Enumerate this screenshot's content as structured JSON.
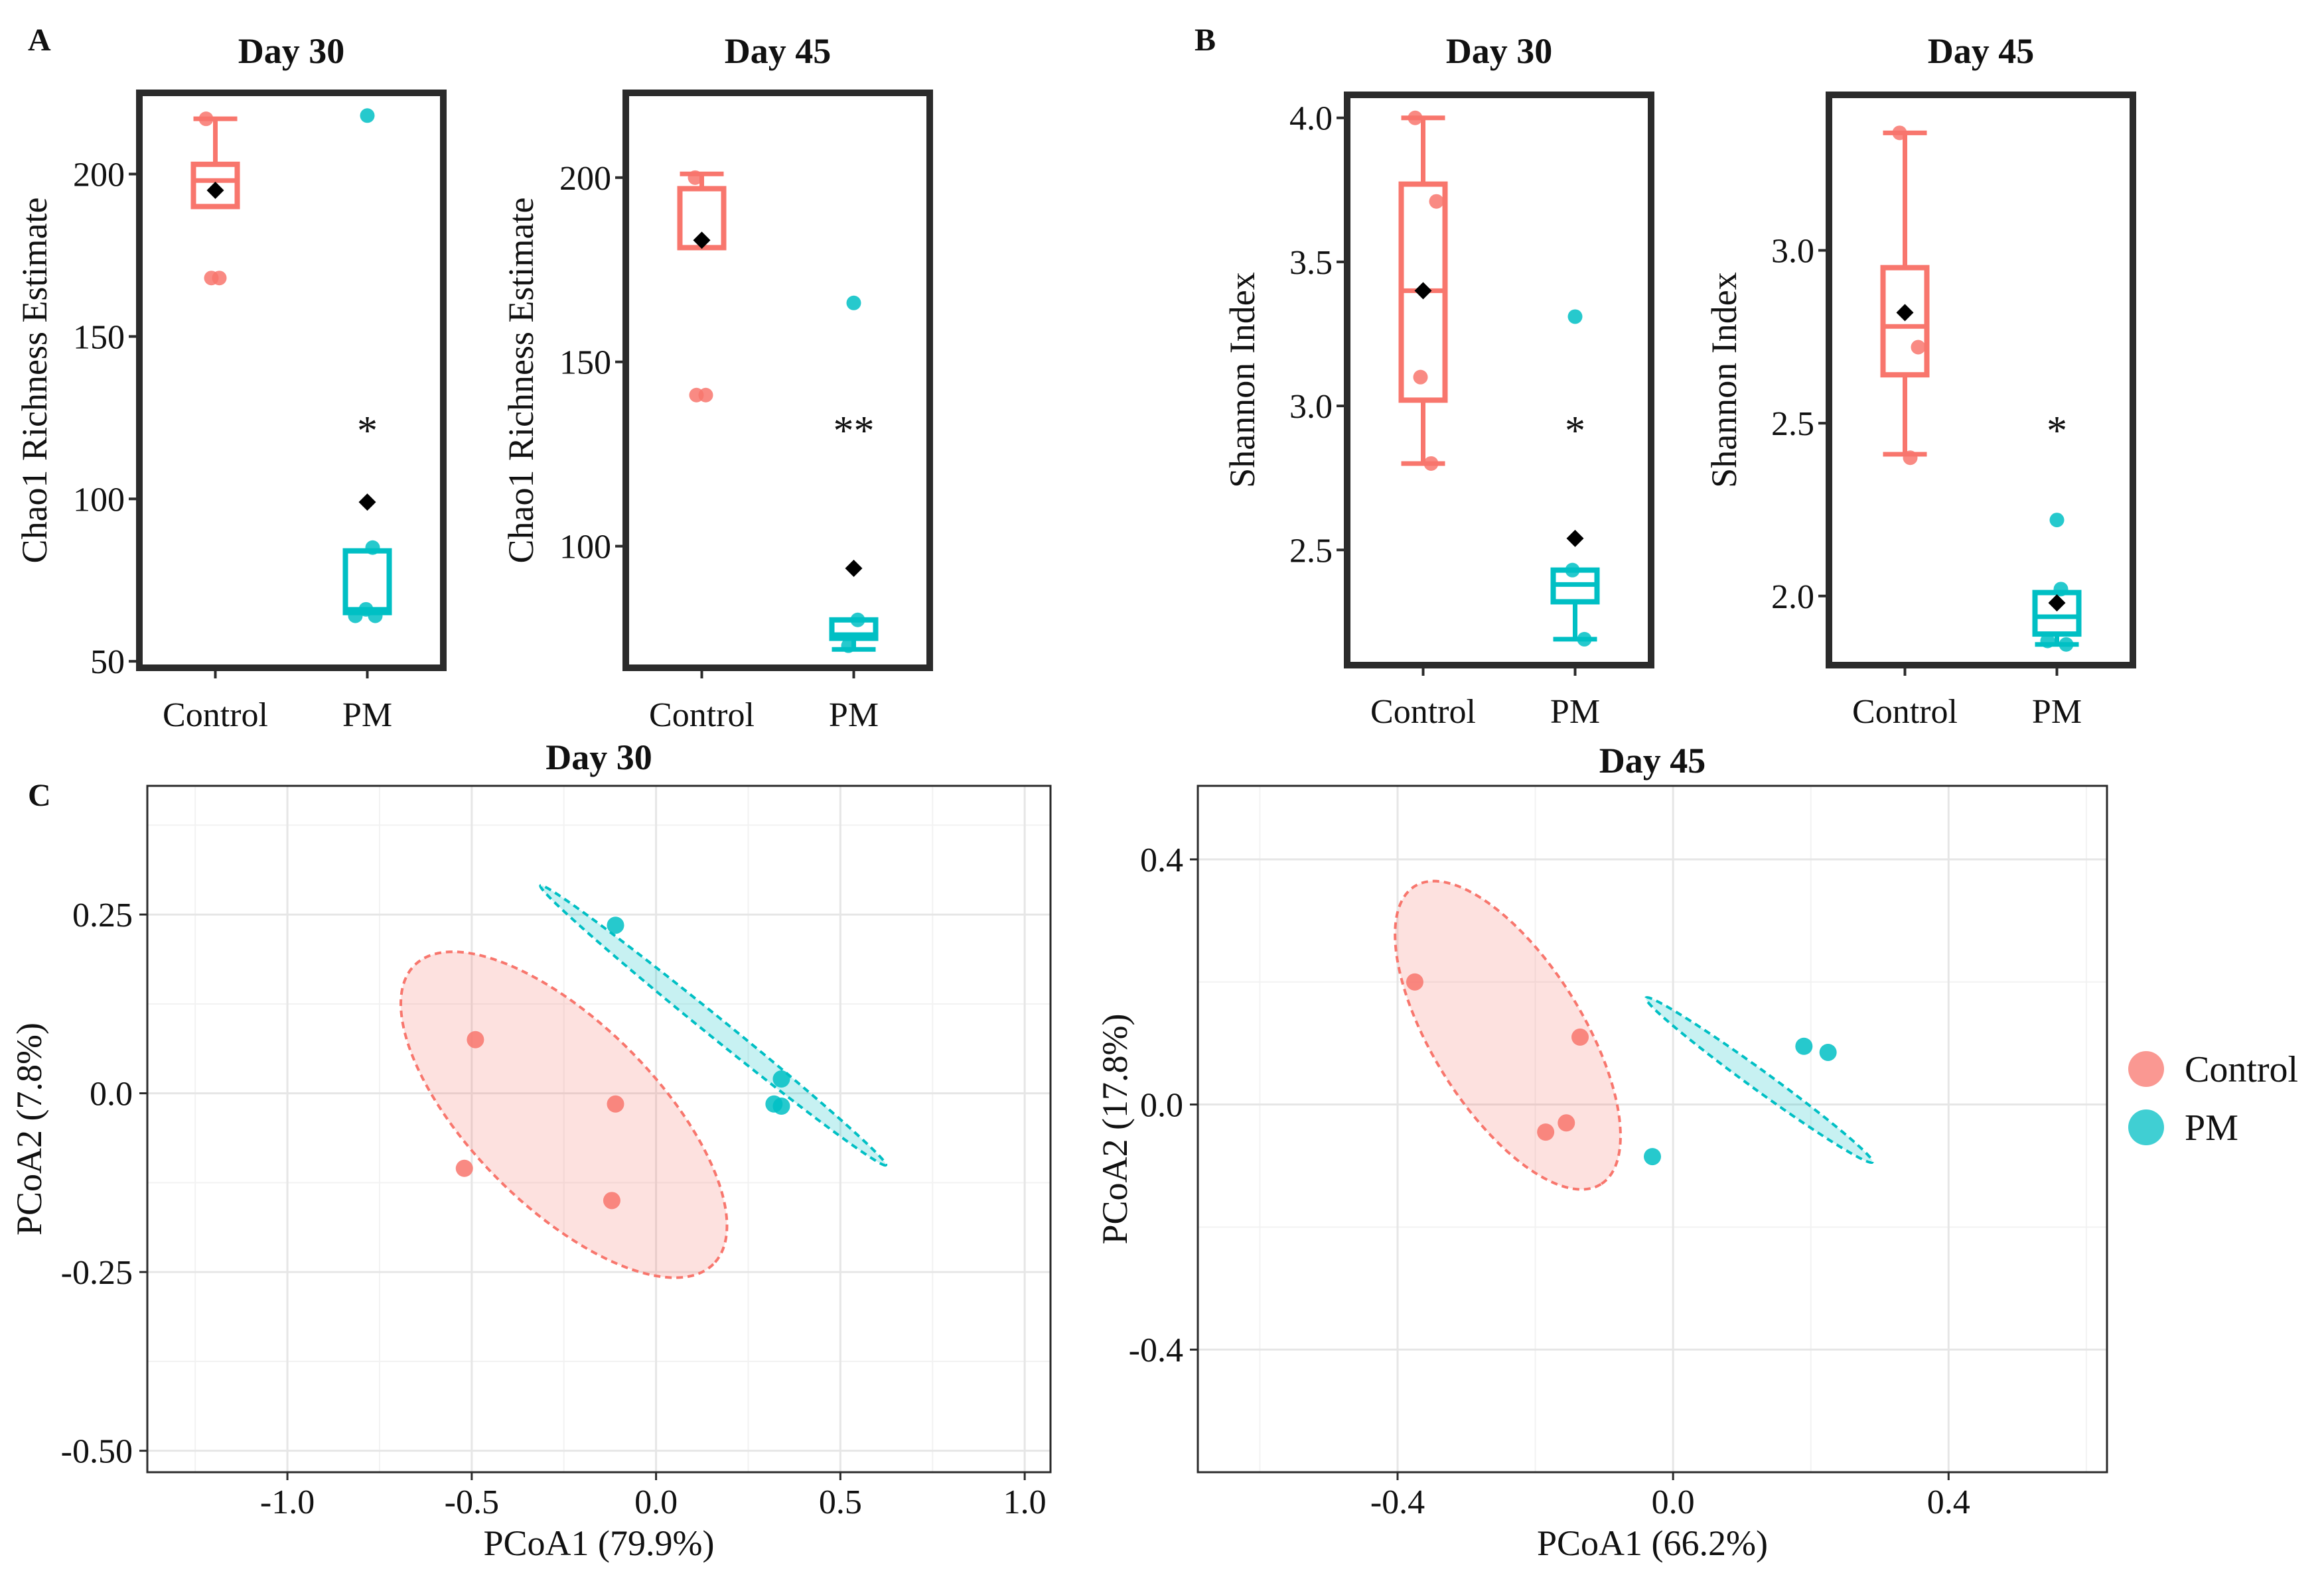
{
  "colors": {
    "control": "#F8766D",
    "pm": "#00BFC4",
    "frame": "#2b2b2b",
    "mean_marker": "#000000",
    "grid": "#e6e6e6"
  },
  "panel_letters": [
    "A",
    "B",
    "C"
  ],
  "chart_data": [
    {
      "id": "chao1-day30",
      "type": "box",
      "panel": "A",
      "title": "Day 30",
      "xlabel": "",
      "ylabel": "Chao1 Richness Estimate",
      "categories": [
        "Control",
        "PM"
      ],
      "ylim": [
        48,
        225
      ],
      "yticks": [
        50,
        100,
        150,
        200
      ],
      "ytick_labels": [
        "50",
        "100",
        "150",
        "200"
      ],
      "boxes": [
        {
          "group": "Control",
          "whisker_low": 190,
          "q1": 190,
          "median": 198,
          "q3": 203,
          "whisker_high": 217,
          "mean": 195,
          "points": [
            217,
            168,
            168
          ]
        },
        {
          "group": "PM",
          "whisker_low": 65,
          "q1": 65,
          "median": 66,
          "q3": 84,
          "whisker_high": 84,
          "mean": 99,
          "points": [
            218,
            85,
            64,
            66,
            64
          ]
        }
      ],
      "significance": "*"
    },
    {
      "id": "chao1-day45",
      "type": "box",
      "panel": "A",
      "title": "Day 45",
      "xlabel": "",
      "ylabel": "Chao1 Richness Estimate",
      "categories": [
        "Control",
        "PM"
      ],
      "ylim": [
        67,
        223
      ],
      "yticks": [
        100,
        150,
        200
      ],
      "ytick_labels": [
        "100",
        "150",
        "200"
      ],
      "boxes": [
        {
          "group": "Control",
          "whisker_low": 181,
          "q1": 181,
          "median": 197,
          "q3": 197,
          "whisker_high": 201,
          "mean": 183,
          "points": [
            200,
            141,
            141
          ]
        },
        {
          "group": "PM",
          "whisker_low": 72,
          "q1": 75,
          "median": 76,
          "q3": 80,
          "whisker_high": 80,
          "mean": 94,
          "points": [
            166,
            80,
            73
          ]
        }
      ],
      "significance": "**"
    },
    {
      "id": "shannon-day30",
      "type": "box",
      "panel": "B",
      "title": "Day 30",
      "xlabel": "",
      "ylabel": "Shannon Index",
      "categories": [
        "Control",
        "PM"
      ],
      "ylim": [
        2.1,
        4.08
      ],
      "yticks": [
        2.5,
        3.0,
        3.5,
        4.0
      ],
      "ytick_labels": [
        "2.5",
        "3.0",
        "3.5",
        "4.0"
      ],
      "boxes": [
        {
          "group": "Control",
          "whisker_low": 2.8,
          "q1": 3.02,
          "median": 3.4,
          "q3": 3.77,
          "whisker_high": 4.0,
          "mean": 3.4,
          "points": [
            4.0,
            3.71,
            3.1,
            2.8
          ]
        },
        {
          "group": "PM",
          "whisker_low": 2.19,
          "q1": 2.32,
          "median": 2.38,
          "q3": 2.43,
          "whisker_high": 2.43,
          "mean": 2.54,
          "points": [
            3.31,
            2.43,
            2.19
          ]
        }
      ],
      "significance": "*"
    },
    {
      "id": "shannon-day45",
      "type": "box",
      "panel": "B",
      "title": "Day 45",
      "xlabel": "",
      "ylabel": "Shannon Index",
      "categories": [
        "Control",
        "PM"
      ],
      "ylim": [
        1.8,
        3.45
      ],
      "yticks": [
        2.0,
        2.5,
        3.0
      ],
      "ytick_labels": [
        "2.0",
        "2.5",
        "3.0"
      ],
      "boxes": [
        {
          "group": "Control",
          "whisker_low": 2.41,
          "q1": 2.64,
          "median": 2.78,
          "q3": 2.95,
          "whisker_high": 3.34,
          "mean": 2.82,
          "points": [
            3.34,
            2.72,
            2.4
          ]
        },
        {
          "group": "PM",
          "whisker_low": 1.86,
          "q1": 1.89,
          "median": 1.94,
          "q3": 2.01,
          "whisker_high": 2.01,
          "mean": 1.98,
          "points": [
            2.22,
            2.02,
            1.87,
            1.86
          ]
        }
      ],
      "significance": "*"
    },
    {
      "id": "pcoa-day30",
      "type": "scatter",
      "panel": "C",
      "title": "Day 30",
      "xlabel": "PCoA1 (79.9%)",
      "ylabel": "PCoA2 (7.8%)",
      "xlim": [
        -1.38,
        1.07
      ],
      "ylim": [
        -0.53,
        0.43
      ],
      "xticks": [
        -1.0,
        -0.5,
        0.0,
        0.5,
        1.0
      ],
      "xtick_labels": [
        "-1.0",
        "-0.5",
        "0.0",
        "0.5",
        "1.0"
      ],
      "yticks": [
        -0.5,
        -0.25,
        0.0,
        0.25
      ],
      "ytick_labels": [
        "-0.50",
        "-0.25",
        "0.0",
        "0.25"
      ],
      "series": [
        {
          "name": "Control",
          "points": [
            [
              -0.49,
              0.075
            ],
            [
              -0.52,
              -0.105
            ],
            [
              -0.11,
              -0.015
            ],
            [
              -0.12,
              -0.15
            ]
          ],
          "ellipse": {
            "center": [
              -0.25,
              -0.03
            ],
            "semi_axes_data": [
              0.39,
              0.17
            ],
            "tilt_deg": 45
          }
        },
        {
          "name": "PM",
          "points": [
            [
              -0.11,
              0.235
            ],
            [
              0.34,
              0.02
            ],
            [
              0.32,
              -0.015
            ],
            [
              0.34,
              -0.018
            ]
          ],
          "ellipse": {
            "center": [
              0.155,
              0.095
            ],
            "semi_axes_data": [
              0.41,
              0.018
            ],
            "tilt_deg": 39
          }
        }
      ]
    },
    {
      "id": "pcoa-day45",
      "type": "scatter",
      "panel": "C",
      "title": "Day 45",
      "xlabel": "PCoA1 (66.2%)",
      "ylabel": "PCoA2 (17.8%)",
      "xlim": [
        -0.69,
        0.63
      ],
      "ylim": [
        -0.6,
        0.52
      ],
      "xticks": [
        -0.4,
        0.0,
        0.4
      ],
      "xtick_labels": [
        "-0.4",
        "0.0",
        "0.4"
      ],
      "yticks": [
        -0.4,
        0.0,
        0.4
      ],
      "ytick_labels": [
        "-0.4",
        "0.0",
        "0.4"
      ],
      "series": [
        {
          "name": "Control",
          "points": [
            [
              -0.375,
              0.2
            ],
            [
              -0.135,
              0.11
            ],
            [
              -0.185,
              -0.045
            ],
            [
              -0.155,
              -0.03
            ]
          ],
          "ellipse": {
            "center": [
              -0.24,
              0.113
            ],
            "semi_axes_data": [
              0.27,
              0.115
            ],
            "tilt_deg": 58
          }
        },
        {
          "name": "PM",
          "points": [
            [
              0.19,
              0.095
            ],
            [
              0.225,
              0.085
            ],
            [
              -0.03,
              -0.085
            ]
          ],
          "ellipse": {
            "center": [
              0.125,
              0.04
            ],
            "semi_axes_data": [
              0.215,
              0.015
            ],
            "tilt_deg": 36
          }
        }
      ]
    }
  ],
  "legend": {
    "items": [
      {
        "label": "Control",
        "color_key": "control"
      },
      {
        "label": "PM",
        "color_key": "pm"
      }
    ]
  }
}
